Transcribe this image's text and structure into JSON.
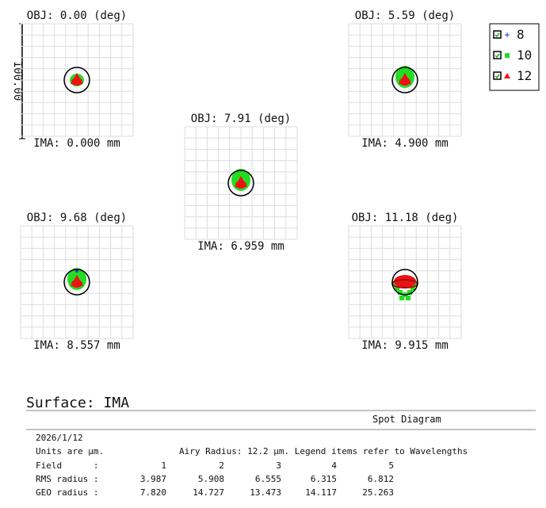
{
  "fields": [
    {
      "obj": "OBJ: 0.00 (deg)",
      "ima": "IMA: 0.000 mm"
    },
    {
      "obj": "OBJ: 5.59 (deg)",
      "ima": "IMA: 4.900 mm"
    },
    {
      "obj": "OBJ: 7.91 (deg)",
      "ima": "IMA: 6.959 mm"
    },
    {
      "obj": "OBJ: 9.68 (deg)",
      "ima": "IMA: 8.557 mm"
    },
    {
      "obj": "OBJ: 11.18 (deg)",
      "ima": "IMA: 9.915 mm"
    }
  ],
  "scale_label": "100.00",
  "legend": [
    {
      "name": "8",
      "color": "#2030e0"
    },
    {
      "name": "10",
      "color": "#22dd22"
    },
    {
      "name": "12",
      "color": "#ee1111"
    }
  ],
  "surface": "Surface: IMA",
  "report": {
    "title": "Spot Diagram",
    "date": "2026/1/12",
    "units": "Units are µm.",
    "airy": "Airy Radius: 12.2 µm. Legend items refer to Wavelengths",
    "rows": [
      [
        "Field      :",
        "1",
        "2",
        "3",
        "4",
        "5"
      ],
      [
        "RMS radius :",
        "3.987",
        "5.908",
        "6.555",
        "6.315",
        "6.812"
      ],
      [
        "GEO radius :",
        "7.820",
        "14.727",
        "13.473",
        "14.117",
        "25.263"
      ]
    ]
  }
}
